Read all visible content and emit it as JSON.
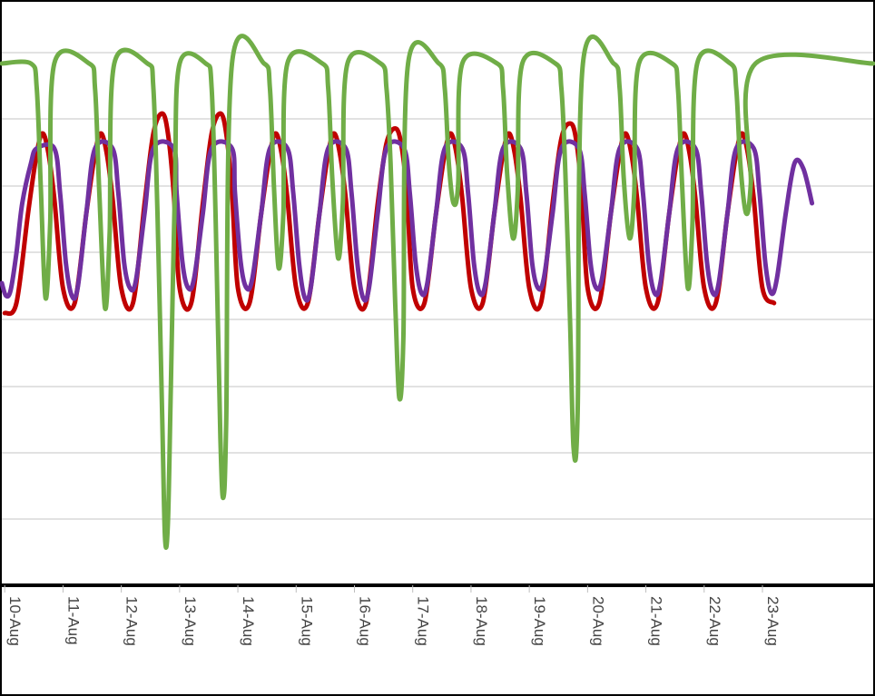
{
  "chart_data": {
    "type": "line",
    "title": "",
    "xlabel": "",
    "ylabel": "",
    "grid": true,
    "x_range": [
      9.95,
      24.9
    ],
    "y_range": [
      0,
      1
    ],
    "categories": [
      "10-Aug",
      "11-Aug",
      "12-Aug",
      "13-Aug",
      "14-Aug",
      "15-Aug",
      "16-Aug",
      "17-Aug",
      "18-Aug",
      "19-Aug",
      "20-Aug",
      "21-Aug",
      "22-Aug",
      "23-Aug"
    ],
    "tick_positions": [
      10,
      11,
      12,
      13,
      14,
      15,
      16,
      17,
      18,
      19,
      20,
      21,
      22,
      23
    ],
    "series": [
      {
        "color": "#c00000",
        "x": [
          10.0,
          10.2,
          10.4,
          10.55,
          10.65,
          10.75,
          10.85,
          11.0,
          11.2,
          11.4,
          11.55,
          11.65,
          11.75,
          11.85,
          12.0,
          12.2,
          12.4,
          12.55,
          12.7,
          12.8,
          12.9,
          13.0,
          13.2,
          13.4,
          13.55,
          13.7,
          13.8,
          13.9,
          14.0,
          14.2,
          14.4,
          14.55,
          14.65,
          14.75,
          14.85,
          15.0,
          15.2,
          15.4,
          15.55,
          15.65,
          15.75,
          15.85,
          16.0,
          16.2,
          16.4,
          16.55,
          16.7,
          16.8,
          16.9,
          17.0,
          17.2,
          17.4,
          17.55,
          17.65,
          17.75,
          17.85,
          18.0,
          18.2,
          18.4,
          18.55,
          18.65,
          18.75,
          18.85,
          19.0,
          19.2,
          19.4,
          19.55,
          19.7,
          19.8,
          19.9,
          20.0,
          20.2,
          20.4,
          20.55,
          20.65,
          20.75,
          20.85,
          21.0,
          21.2,
          21.4,
          21.55,
          21.65,
          21.75,
          21.85,
          22.0,
          22.2,
          22.4,
          22.55,
          22.65,
          22.75,
          22.85,
          23.0,
          23.2
        ],
        "y": [
          0.5,
          0.52,
          0.7,
          0.82,
          0.86,
          0.82,
          0.73,
          0.55,
          0.52,
          0.7,
          0.82,
          0.86,
          0.82,
          0.73,
          0.55,
          0.52,
          0.72,
          0.86,
          0.9,
          0.86,
          0.74,
          0.55,
          0.52,
          0.72,
          0.86,
          0.9,
          0.86,
          0.74,
          0.55,
          0.52,
          0.7,
          0.82,
          0.86,
          0.82,
          0.73,
          0.55,
          0.52,
          0.7,
          0.82,
          0.86,
          0.82,
          0.73,
          0.55,
          0.52,
          0.72,
          0.84,
          0.87,
          0.84,
          0.74,
          0.55,
          0.52,
          0.7,
          0.82,
          0.86,
          0.82,
          0.73,
          0.55,
          0.52,
          0.7,
          0.82,
          0.86,
          0.82,
          0.73,
          0.55,
          0.52,
          0.72,
          0.85,
          0.88,
          0.85,
          0.74,
          0.55,
          0.52,
          0.7,
          0.82,
          0.86,
          0.82,
          0.73,
          0.55,
          0.52,
          0.7,
          0.82,
          0.86,
          0.82,
          0.73,
          0.55,
          0.52,
          0.7,
          0.82,
          0.86,
          0.82,
          0.73,
          0.55,
          0.52
        ]
      },
      {
        "color": "#7030a0",
        "x": [
          9.95,
          10.02,
          10.1,
          10.2,
          10.3,
          10.45,
          10.55,
          10.85,
          10.95,
          11.05,
          11.15,
          11.25,
          11.4,
          11.55,
          11.85,
          11.95,
          12.05,
          12.15,
          12.25,
          12.4,
          12.55,
          12.9,
          12.95,
          13.05,
          13.15,
          13.25,
          13.4,
          13.55,
          13.9,
          13.95,
          14.05,
          14.15,
          14.25,
          14.4,
          14.55,
          14.85,
          14.95,
          15.05,
          15.15,
          15.25,
          15.4,
          15.55,
          15.85,
          15.95,
          16.05,
          16.15,
          16.25,
          16.4,
          16.55,
          16.85,
          16.95,
          17.05,
          17.15,
          17.25,
          17.4,
          17.55,
          17.85,
          17.95,
          18.05,
          18.15,
          18.25,
          18.4,
          18.55,
          18.85,
          18.95,
          19.05,
          19.15,
          19.25,
          19.4,
          19.55,
          19.85,
          19.95,
          20.05,
          20.15,
          20.25,
          20.4,
          20.55,
          20.85,
          20.95,
          21.05,
          21.15,
          21.25,
          21.4,
          21.55,
          21.85,
          21.95,
          22.05,
          22.15,
          22.25,
          22.4,
          22.55,
          22.85,
          22.95,
          23.05,
          23.15,
          23.25,
          23.4,
          23.55,
          23.7,
          23.85
        ],
        "y": [
          0.56,
          0.535,
          0.545,
          0.62,
          0.72,
          0.8,
          0.83,
          0.83,
          0.74,
          0.6,
          0.535,
          0.55,
          0.7,
          0.83,
          0.83,
          0.74,
          0.6,
          0.55,
          0.565,
          0.7,
          0.83,
          0.83,
          0.74,
          0.6,
          0.55,
          0.57,
          0.7,
          0.83,
          0.83,
          0.74,
          0.6,
          0.55,
          0.57,
          0.7,
          0.83,
          0.83,
          0.74,
          0.6,
          0.53,
          0.55,
          0.7,
          0.83,
          0.83,
          0.74,
          0.6,
          0.53,
          0.55,
          0.7,
          0.83,
          0.83,
          0.74,
          0.6,
          0.54,
          0.56,
          0.7,
          0.83,
          0.83,
          0.74,
          0.6,
          0.54,
          0.56,
          0.7,
          0.83,
          0.83,
          0.74,
          0.6,
          0.55,
          0.57,
          0.7,
          0.83,
          0.83,
          0.74,
          0.6,
          0.55,
          0.57,
          0.7,
          0.83,
          0.83,
          0.74,
          0.6,
          0.54,
          0.56,
          0.7,
          0.83,
          0.83,
          0.74,
          0.6,
          0.54,
          0.56,
          0.7,
          0.83,
          0.83,
          0.74,
          0.6,
          0.54,
          0.57,
          0.7,
          0.8,
          0.79,
          0.72
        ]
      },
      {
        "color": "#70ad47",
        "x": [
          9.95,
          10.45,
          10.55,
          10.62,
          10.7,
          10.78,
          10.85,
          11.45,
          11.55,
          11.62,
          11.72,
          11.8,
          11.88,
          12.45,
          12.55,
          12.62,
          12.7,
          12.75,
          12.8,
          12.85,
          12.92,
          13.0,
          13.45,
          13.55,
          13.62,
          13.7,
          13.75,
          13.8,
          13.9,
          14.45,
          14.55,
          14.62,
          14.7,
          14.78,
          14.85,
          15.45,
          15.55,
          15.62,
          15.72,
          15.8,
          15.88,
          16.45,
          16.55,
          16.62,
          16.7,
          16.77,
          16.84,
          16.92,
          17.45,
          17.55,
          17.62,
          17.7,
          17.78,
          17.85,
          18.45,
          18.55,
          18.62,
          18.72,
          18.8,
          18.88,
          19.45,
          19.55,
          19.62,
          19.7,
          19.76,
          19.83,
          19.92,
          20.45,
          20.55,
          20.62,
          20.72,
          20.8,
          20.88,
          21.45,
          21.55,
          21.62,
          21.72,
          21.8,
          21.88,
          22.45,
          22.55,
          22.62,
          22.72,
          22.8,
          22.88,
          24.9
        ],
        "y": [
          1.0,
          1.0,
          0.95,
          0.75,
          0.53,
          0.68,
          1.0,
          1.0,
          0.95,
          0.75,
          0.51,
          0.66,
          1.0,
          1.0,
          0.95,
          0.7,
          0.3,
          0.05,
          0.08,
          0.35,
          0.75,
          1.0,
          1.0,
          0.95,
          0.68,
          0.25,
          0.13,
          0.28,
          1.0,
          1.0,
          0.95,
          0.75,
          0.59,
          0.7,
          1.0,
          1.0,
          0.95,
          0.77,
          0.61,
          0.72,
          1.0,
          1.0,
          0.95,
          0.8,
          0.52,
          0.33,
          0.45,
          1.0,
          1.0,
          0.95,
          0.8,
          0.72,
          0.76,
          1.0,
          1.0,
          0.95,
          0.78,
          0.65,
          0.74,
          1.0,
          1.0,
          0.95,
          0.78,
          0.48,
          0.23,
          0.3,
          1.0,
          1.0,
          0.95,
          0.77,
          0.65,
          0.74,
          1.0,
          1.0,
          0.95,
          0.76,
          0.55,
          0.68,
          1.0,
          1.0,
          0.95,
          0.8,
          0.7,
          0.76,
          1.0,
          1.0
        ]
      }
    ]
  }
}
